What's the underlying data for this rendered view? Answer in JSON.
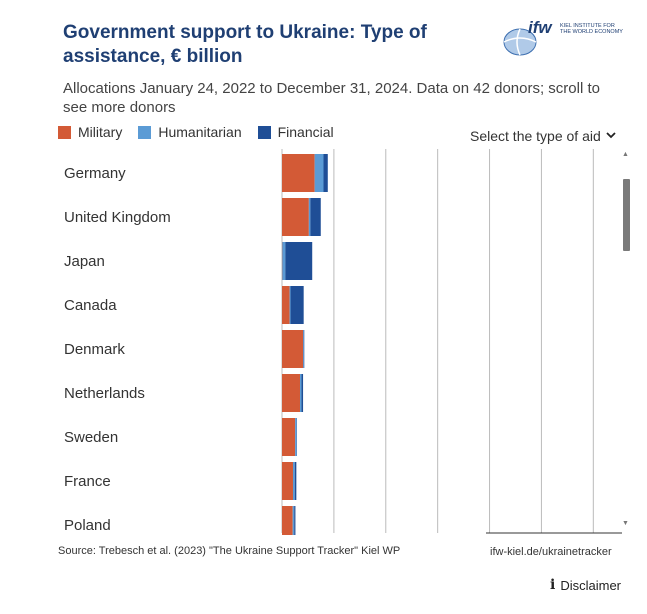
{
  "header": {
    "title": "Government support to Ukraine: Type of assistance, € billion",
    "subtitle": "Allocations January 24, 2022 to December 31, 2024. Data on 42 donors; scroll to see more donors"
  },
  "logo": {
    "mark": "ifw",
    "line1": "KIEL INSTITUTE FOR",
    "line2": "THE WORLD ECONOMY"
  },
  "controls": {
    "select_label": "Select the type of aid"
  },
  "footer": {
    "source": "Source: Trebesch et al. (2023) \"The Ukraine Support Tracker\" Kiel WP",
    "link": "ifw-kiel.de/ukrainetracker",
    "disclaimer": "Disclaimer"
  },
  "colors": {
    "military": "#d35a36",
    "humanitarian": "#5b9bd5",
    "financial": "#1f4e96",
    "grid": "#bbbbbb",
    "title": "#1f3f73"
  },
  "icons": {
    "disclaimer": "info-icon",
    "select": "chevron-down-icon",
    "logo": "globe-icon"
  },
  "chart_data": {
    "type": "bar",
    "orientation": "horizontal",
    "stacked": true,
    "title": "Government support to Ukraine: Type of assistance, € billion",
    "categories": [
      "Germany",
      "United Kingdom",
      "Japan",
      "Canada",
      "Denmark",
      "Netherlands",
      "Sweden",
      "France",
      "Poland"
    ],
    "series": [
      {
        "name": "Military",
        "values": [
          10.7,
          8.8,
          0.1,
          2.5,
          6.9,
          5.9,
          4.3,
          3.6,
          3.5
        ],
        "color": "#d35a36"
      },
      {
        "name": "Humanitarian",
        "values": [
          2.9,
          0.5,
          1.0,
          0.3,
          0.2,
          0.5,
          0.5,
          0.6,
          0.5
        ],
        "color": "#5b9bd5"
      },
      {
        "name": "Financial",
        "values": [
          1.4,
          3.4,
          8.8,
          4.3,
          0.2,
          0.5,
          0.1,
          0.5,
          0.4
        ],
        "color": "#1f4e96"
      }
    ],
    "xlim": [
      0,
      115
    ],
    "gridlines": [
      0,
      17,
      34,
      51,
      68,
      85,
      102
    ],
    "grid": true,
    "legend": "top-left"
  }
}
